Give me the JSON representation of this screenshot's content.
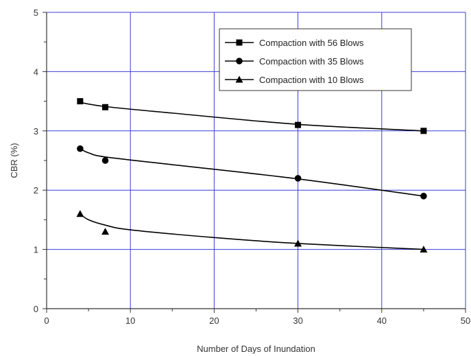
{
  "chart_data": {
    "type": "scatter",
    "title": "",
    "xlabel": "Number of Days of Inundation",
    "ylabel": "CBR (%)",
    "xlim": [
      0,
      50
    ],
    "ylim": [
      0,
      5
    ],
    "x_ticks": [
      0,
      10,
      20,
      30,
      40,
      50
    ],
    "y_ticks": [
      0,
      1,
      2,
      3,
      4,
      5
    ],
    "x_tick_labels": [
      "0",
      "10",
      "20",
      "30",
      "40",
      "50"
    ],
    "y_tick_labels": [
      "0",
      "1",
      "2",
      "3",
      "4",
      "5"
    ],
    "grid": true,
    "grid_color": "#3b3bdc",
    "legend_position": "top-right",
    "series": [
      {
        "name": "Compaction with 56 Blows",
        "marker": "square",
        "color": "#000000",
        "x": [
          4,
          7,
          30,
          45
        ],
        "y": [
          3.5,
          3.4,
          3.1,
          3.0
        ],
        "trend": [
          [
            4,
            3.48
          ],
          [
            7,
            3.41
          ],
          [
            15,
            3.3
          ],
          [
            30,
            3.11
          ],
          [
            45,
            3.0
          ]
        ]
      },
      {
        "name": "Compaction with 35 Blows",
        "marker": "circle",
        "color": "#000000",
        "x": [
          4,
          7,
          30,
          45
        ],
        "y": [
          2.7,
          2.5,
          2.2,
          1.9
        ],
        "trend": [
          [
            4,
            2.7
          ],
          [
            5,
            2.63
          ],
          [
            7,
            2.56
          ],
          [
            15,
            2.43
          ],
          [
            30,
            2.19
          ],
          [
            45,
            1.9
          ]
        ]
      },
      {
        "name": "Compaction with 10 Blows",
        "marker": "triangle",
        "color": "#000000",
        "x": [
          4,
          7,
          30,
          45
        ],
        "y": [
          1.6,
          1.3,
          1.1,
          1.0
        ],
        "trend": [
          [
            4,
            1.6
          ],
          [
            5,
            1.5
          ],
          [
            7,
            1.41
          ],
          [
            10,
            1.33
          ],
          [
            20,
            1.2
          ],
          [
            30,
            1.1
          ],
          [
            45,
            1.0
          ]
        ]
      }
    ]
  }
}
